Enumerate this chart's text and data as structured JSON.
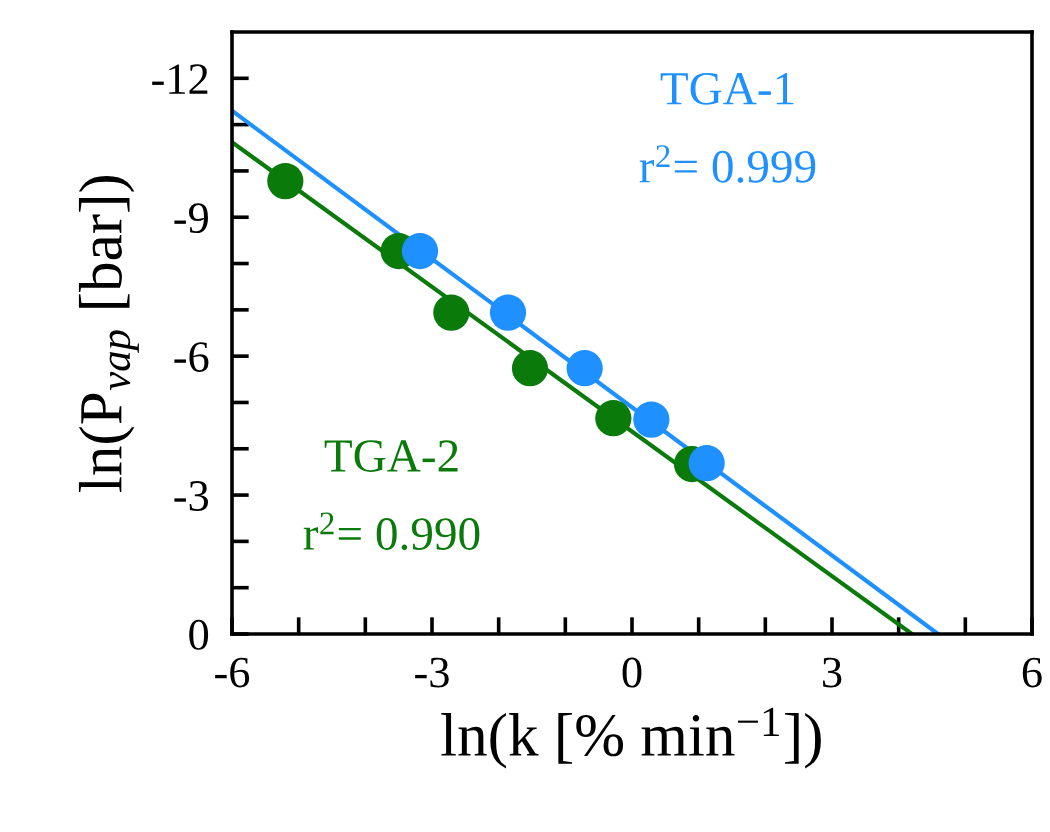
{
  "chart_data": {
    "type": "scatter",
    "xlabel": "ln(k [% min$^{−1}$])",
    "ylabel": "ln(P$_{vap}$ [bar])",
    "series": [
      {
        "name": "TGA-1",
        "marker": "circle",
        "color": "#1e90ff",
        "x": [
          -3.18,
          -1.86,
          -0.71,
          0.29,
          1.12
        ],
        "values": [
          -8.27,
          -6.94,
          -5.74,
          -4.63,
          -3.69
        ]
      },
      {
        "name": "TGA-2",
        "marker": "circle",
        "color": "#0a7a0a",
        "x": [
          -5.2,
          -3.5,
          -2.71,
          -1.53,
          -0.28,
          0.9
        ],
        "values": [
          -9.78,
          -8.27,
          -6.94,
          -5.74,
          -4.66,
          -3.67
        ]
      },
      {
        "type": "line",
        "marker": "none",
        "color": "#1e90ff",
        "x": [
          -6,
          4.59
        ],
        "values": [
          -11.3,
          0
        ]
      },
      {
        "type": "line",
        "marker": "none",
        "color": "#0a7a0a",
        "x": [
          -6,
          4.2
        ],
        "values": [
          -10.62,
          0
        ]
      }
    ],
    "annotations": [
      "r$^{2}$= 0.999",
      "r$^{2}$= 0.990"
    ],
    "xlim": [
      -6,
      6
    ],
    "ylim": [
      0,
      -13
    ],
    "xticks": [
      -6,
      {
        "value": -5,
        "label": null
      },
      {
        "value": -4,
        "label": null
      },
      -3,
      {
        "value": -2,
        "label": null
      },
      {
        "value": -1,
        "label": null
      },
      0,
      {
        "value": 1,
        "label": null
      },
      {
        "value": 2,
        "label": null
      },
      3,
      {
        "value": 4,
        "label": null
      },
      {
        "value": 5,
        "label": null
      },
      6
    ],
    "yticks": [
      0,
      {
        "value": -1,
        "label": null
      },
      {
        "value": -2,
        "label": null
      },
      -3,
      {
        "value": -4,
        "label": null
      },
      {
        "value": -5,
        "label": null
      },
      -6,
      {
        "value": -7,
        "label": null
      },
      {
        "value": -8,
        "label": null
      },
      -9,
      {
        "value": -10,
        "label": null
      },
      {
        "value": -11,
        "label": null
      },
      -12
    ],
    "grid": false,
    "legend": false
  }
}
